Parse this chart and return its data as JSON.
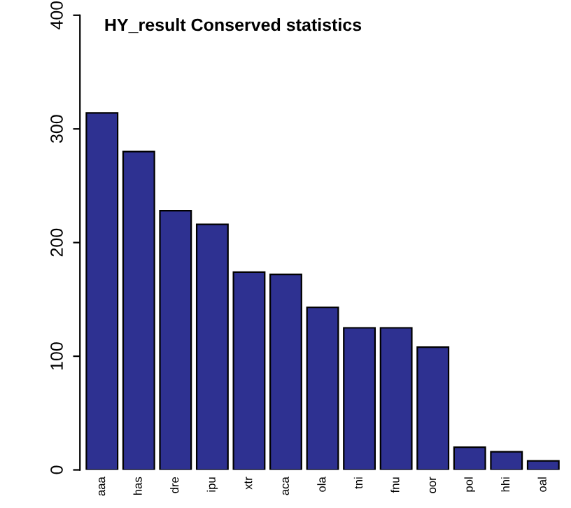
{
  "chart_data": {
    "type": "bar",
    "title": "HY_result Conserved statistics",
    "categories": [
      "aaa",
      "has",
      "dre",
      "ipu",
      "xtr",
      "aca",
      "ola",
      "tni",
      "fnu",
      "oor",
      "pol",
      "hhi",
      "oal"
    ],
    "values": [
      314,
      280,
      228,
      216,
      174,
      172,
      143,
      125,
      125,
      108,
      20,
      16,
      8
    ],
    "color": "#2e3191",
    "ylim": [
      0,
      400
    ],
    "yticks": [
      0,
      100,
      200,
      300,
      400
    ],
    "grid": false
  }
}
